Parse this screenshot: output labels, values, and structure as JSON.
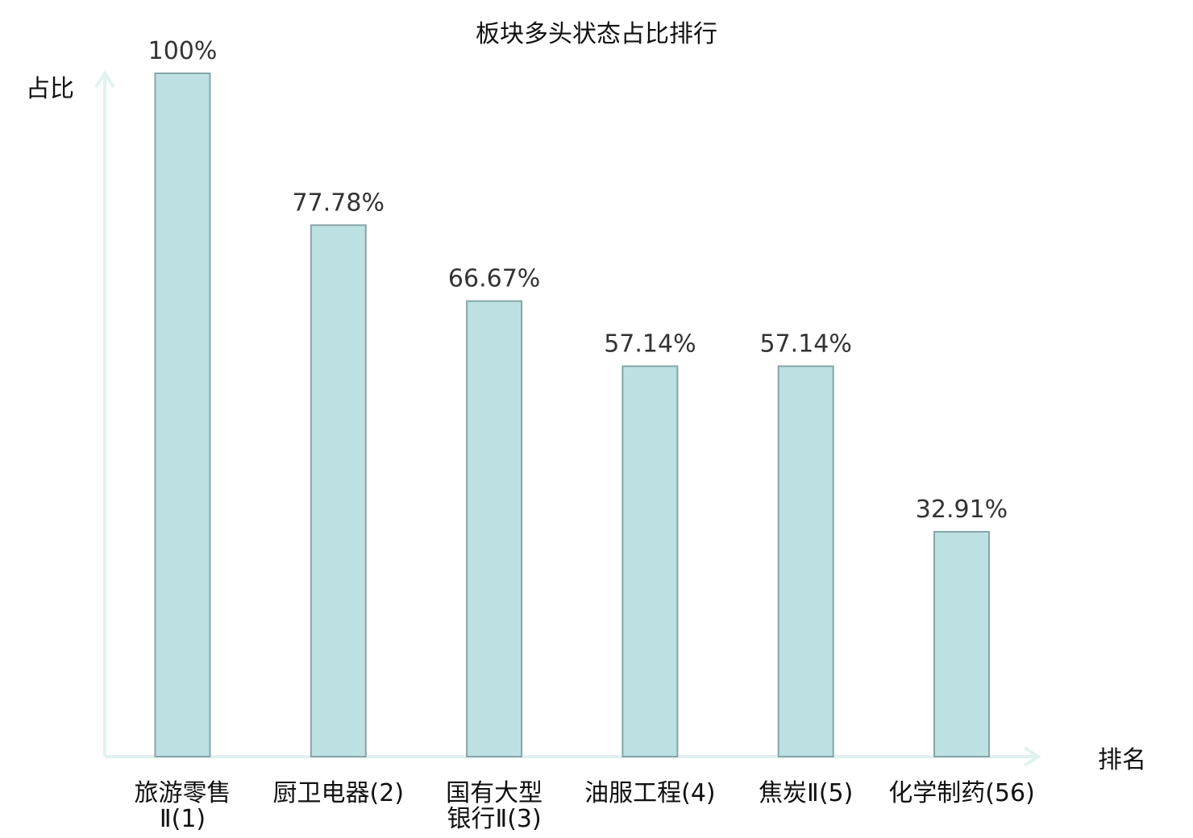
{
  "chart_data": {
    "type": "bar",
    "title": "板块多头状态占比排行",
    "ylabel": "占比",
    "xlabel": "排名",
    "ylim": [
      0,
      100
    ],
    "unit": "%",
    "categories": [
      {
        "lines": [
          "旅游零售",
          "Ⅱ(1)"
        ],
        "highlight": false
      },
      {
        "lines": [
          "厨卫电器(2)"
        ],
        "highlight": false
      },
      {
        "lines": [
          "国有大型",
          "银行Ⅱ(3)"
        ],
        "highlight": false
      },
      {
        "lines": [
          "油服工程(4)"
        ],
        "highlight": false
      },
      {
        "lines": [
          "焦炭Ⅱ(5)"
        ],
        "highlight": false
      },
      {
        "lines": [
          "化学制药(56)"
        ],
        "highlight": true
      }
    ],
    "values": [
      100,
      77.78,
      66.67,
      57.14,
      57.14,
      32.91
    ],
    "value_labels": [
      "100%",
      "77.78%",
      "66.67%",
      "57.14%",
      "57.14%",
      "32.91%"
    ],
    "grid": false,
    "legend": "none",
    "colors": {
      "bar_fill": "#bde0e2",
      "bar_stroke": "#86a6a8",
      "axis": "#e0f2ef",
      "highlight_text": "#dd0000",
      "text": "#111111",
      "value_text": "#333333"
    }
  }
}
